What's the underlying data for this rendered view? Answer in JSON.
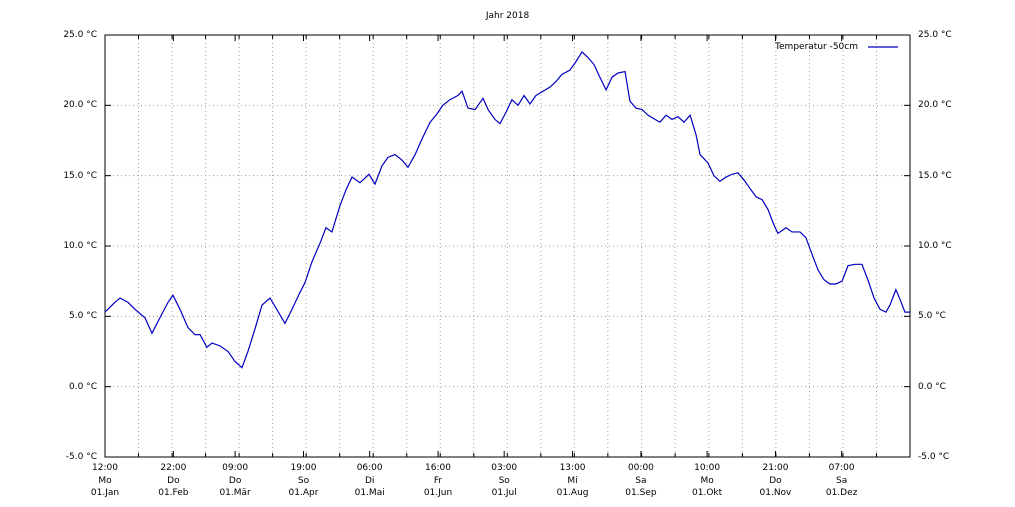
{
  "chart_data": {
    "type": "line",
    "title": "Jahr 2018",
    "xlim": [
      0,
      365
    ],
    "ylim": [
      -5,
      25
    ],
    "xticks": [
      {
        "value": 0,
        "label": "12:00\nMo\n01.Jan"
      },
      {
        "value": 31,
        "label": "22:00\nDo\n01.Feb"
      },
      {
        "value": 59,
        "label": "09:00\nDo\n01.Mär"
      },
      {
        "value": 90,
        "label": "19:00\nSo\n01.Apr"
      },
      {
        "value": 120,
        "label": "06:00\nDi\n01.Mai"
      },
      {
        "value": 151,
        "label": "16:00\nFr\n01.Jun"
      },
      {
        "value": 181,
        "label": "03:00\nSo\n01.Jul"
      },
      {
        "value": 212,
        "label": "13:00\nMi\n01.Aug"
      },
      {
        "value": 243,
        "label": "00:00\nSa\n01.Sep"
      },
      {
        "value": 273,
        "label": "10:00\nMo\n01.Okt"
      },
      {
        "value": 304,
        "label": "21:00\nDo\n01.Nov"
      },
      {
        "value": 334,
        "label": "07:00\nSa\n01.Dez"
      }
    ],
    "xgrid": [
      15.2,
      30.4,
      45.6,
      60.8,
      76,
      91.2,
      106.4,
      121.6,
      136.8,
      152,
      167.2,
      182.4,
      197.6,
      212.8,
      228,
      243.3,
      258.5,
      273.8,
      289,
      304.2,
      319.4,
      334.6,
      349.8
    ],
    "yticks": [
      {
        "value": -5,
        "label": "-5.0 °C"
      },
      {
        "value": 0,
        "label": "0.0 °C"
      },
      {
        "value": 5,
        "label": "5.0 °C"
      },
      {
        "value": 10,
        "label": "10.0 °C"
      },
      {
        "value": 15,
        "label": "15.0 °C"
      },
      {
        "value": 20,
        "label": "20.0 °C"
      },
      {
        "value": 25,
        "label": "25.0 °C"
      }
    ],
    "grid": true,
    "legend": "top-right",
    "x": [
      0,
      4.5,
      6.8,
      10.4,
      13.6,
      18.1,
      21.3,
      24.9,
      28.6,
      30.8,
      34.0,
      37.6,
      40.8,
      43.1,
      46.2,
      48.5,
      52.1,
      55.8,
      58.9,
      62.1,
      64.8,
      68.0,
      71.2,
      74.8,
      77.5,
      81.6,
      84.8,
      88.4,
      90.7,
      93.9,
      97.5,
      100.2,
      102.9,
      106.6,
      109.3,
      112.0,
      115.6,
      119.7,
      122.4,
      125.6,
      128.3,
      131.5,
      134.7,
      137.4,
      140.6,
      143.7,
      147.4,
      150.1,
      153.2,
      156.4,
      160.0,
      161.9,
      164.6,
      167.8,
      171.4,
      173.7,
      176.8,
      179.1,
      181.8,
      184.5,
      187.3,
      190.0,
      192.7,
      195.4,
      198.6,
      201.8,
      204.5,
      207.2,
      210.8,
      213.5,
      216.3,
      219.0,
      221.7,
      224.4,
      227.2,
      229.9,
      232.6,
      235.8,
      238.0,
      240.8,
      243.5,
      246.2,
      249.4,
      251.6,
      254.4,
      257.1,
      259.8,
      262.5,
      265.3,
      268.0,
      269.8,
      273.4,
      276.1,
      278.8,
      281.6,
      284.3,
      287.0,
      289.7,
      292.4,
      295.2,
      297.9,
      300.6,
      303.3,
      305.1,
      308.8,
      311.5,
      315.1,
      317.8,
      320.6,
      323.3,
      326.0,
      328.7,
      331.4,
      334.2,
      336.9,
      340.1,
      343.2,
      345.9,
      348.7,
      351.4,
      354.1,
      355.9,
      358.6,
      360.5,
      362.7,
      365.0
    ],
    "series": [
      {
        "name": "Temperatur -50cm",
        "color": "#0000c0",
        "values": [
          5.3,
          6.0,
          6.3,
          6.0,
          5.5,
          4.9,
          3.8,
          4.9,
          6.0,
          6.5,
          5.5,
          4.2,
          3.7,
          3.7,
          2.8,
          3.1,
          2.9,
          2.5,
          1.8,
          1.35,
          2.5,
          4.1,
          5.8,
          6.3,
          5.6,
          4.5,
          5.5,
          6.7,
          7.4,
          8.9,
          10.2,
          11.3,
          11.0,
          12.9,
          14.0,
          14.9,
          14.5,
          15.1,
          14.4,
          15.7,
          16.3,
          16.5,
          16.1,
          15.6,
          16.5,
          17.6,
          18.8,
          19.3,
          20.0,
          20.4,
          20.7,
          21.0,
          19.8,
          19.7,
          20.5,
          19.7,
          19.0,
          18.7,
          19.5,
          20.4,
          20.0,
          20.7,
          20.1,
          20.7,
          21.0,
          21.3,
          21.7,
          22.2,
          22.5,
          23.1,
          23.8,
          23.4,
          22.9,
          22.0,
          21.1,
          22.0,
          22.3,
          22.4,
          20.3,
          19.8,
          19.7,
          19.3,
          19.0,
          18.8,
          19.3,
          19.0,
          19.2,
          18.8,
          19.3,
          17.9,
          16.5,
          15.9,
          15.0,
          14.6,
          14.9,
          15.1,
          15.2,
          14.7,
          14.1,
          13.5,
          13.3,
          12.6,
          11.5,
          10.9,
          11.3,
          11.0,
          11.0,
          10.6,
          9.4,
          8.3,
          7.6,
          7.3,
          7.3,
          7.5,
          8.6,
          8.7,
          8.7,
          7.6,
          6.3,
          5.5,
          5.3,
          5.8,
          6.9,
          6.2,
          5.3,
          5.3
        ]
      }
    ]
  }
}
